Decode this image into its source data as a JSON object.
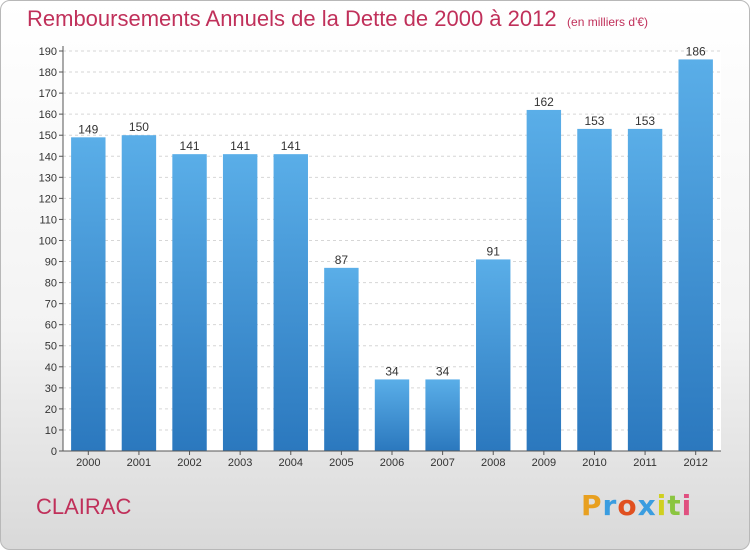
{
  "chart_data": {
    "type": "bar",
    "title": "Remboursements Annuels de la Dette de 2000 à 2012",
    "subtitle": "(en milliers d'€)",
    "categories": [
      "2000",
      "2001",
      "2002",
      "2003",
      "2004",
      "2005",
      "2006",
      "2007",
      "2008",
      "2009",
      "2010",
      "2011",
      "2012"
    ],
    "values": [
      149,
      150,
      141,
      141,
      141,
      87,
      34,
      34,
      91,
      162,
      153,
      153,
      186
    ],
    "ylim": [
      0,
      190
    ],
    "ytick_step": 10,
    "grid": true,
    "bar_color": "#4a9ce0"
  },
  "place": "CLAIRAC",
  "logo": {
    "letters": [
      "P",
      "r",
      "o",
      "x",
      "i",
      "t",
      "i"
    ],
    "colors": [
      "#e8a020",
      "#3a9de0",
      "#e05020",
      "#3a9de0",
      "#d0d020",
      "#8bc540",
      "#e05080"
    ]
  }
}
